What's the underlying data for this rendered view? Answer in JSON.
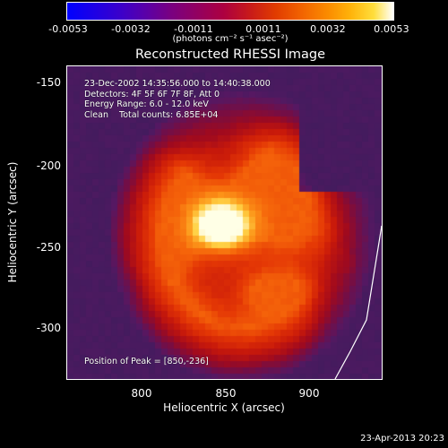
{
  "colorbar": {
    "tick_labels": [
      "-0.0053",
      "-0.0032",
      "-0.0011",
      "0.0011",
      "0.0032",
      "0.0053"
    ],
    "tick_values": [
      -0.0053,
      -0.0032,
      -0.0011,
      0.0011,
      0.0032,
      0.0053
    ],
    "unit": "(photons cm⁻² s⁻¹ asec⁻²)",
    "range": [
      -0.0053,
      0.0053
    ]
  },
  "plot": {
    "title": "Reconstructed RHESSI Image",
    "xlabel": "Heliocentric X (arcsec)",
    "ylabel": "Heliocentric Y (arcsec)",
    "x_ticks": [
      "800",
      "850",
      "900"
    ],
    "x_tick_values": [
      800,
      850,
      900
    ],
    "y_ticks": [
      "-150",
      "-200",
      "-250",
      "-300"
    ],
    "y_tick_values": [
      -150,
      -200,
      -250,
      -300
    ],
    "x_range": [
      757,
      944
    ],
    "y_range": [
      -332,
      -137
    ],
    "info_lines": [
      "23-Dec-2002 14:35:56.000 to 14:40:38.000",
      "Detectors: 4F 5F 6F 7F 8F, Att 0",
      "Energy Range: 6.0 - 12.0 keV",
      "Clean    Total counts: 6.85E+04"
    ],
    "peak_text": "Position of Peak = [850,-236]",
    "peak_position": [
      850,
      -236
    ]
  },
  "footer": {
    "date": "23-Apr-2013 20:23"
  },
  "colors": {
    "background": "#000000",
    "frame": "#ffffff",
    "limb_line": "#ffffff"
  }
}
